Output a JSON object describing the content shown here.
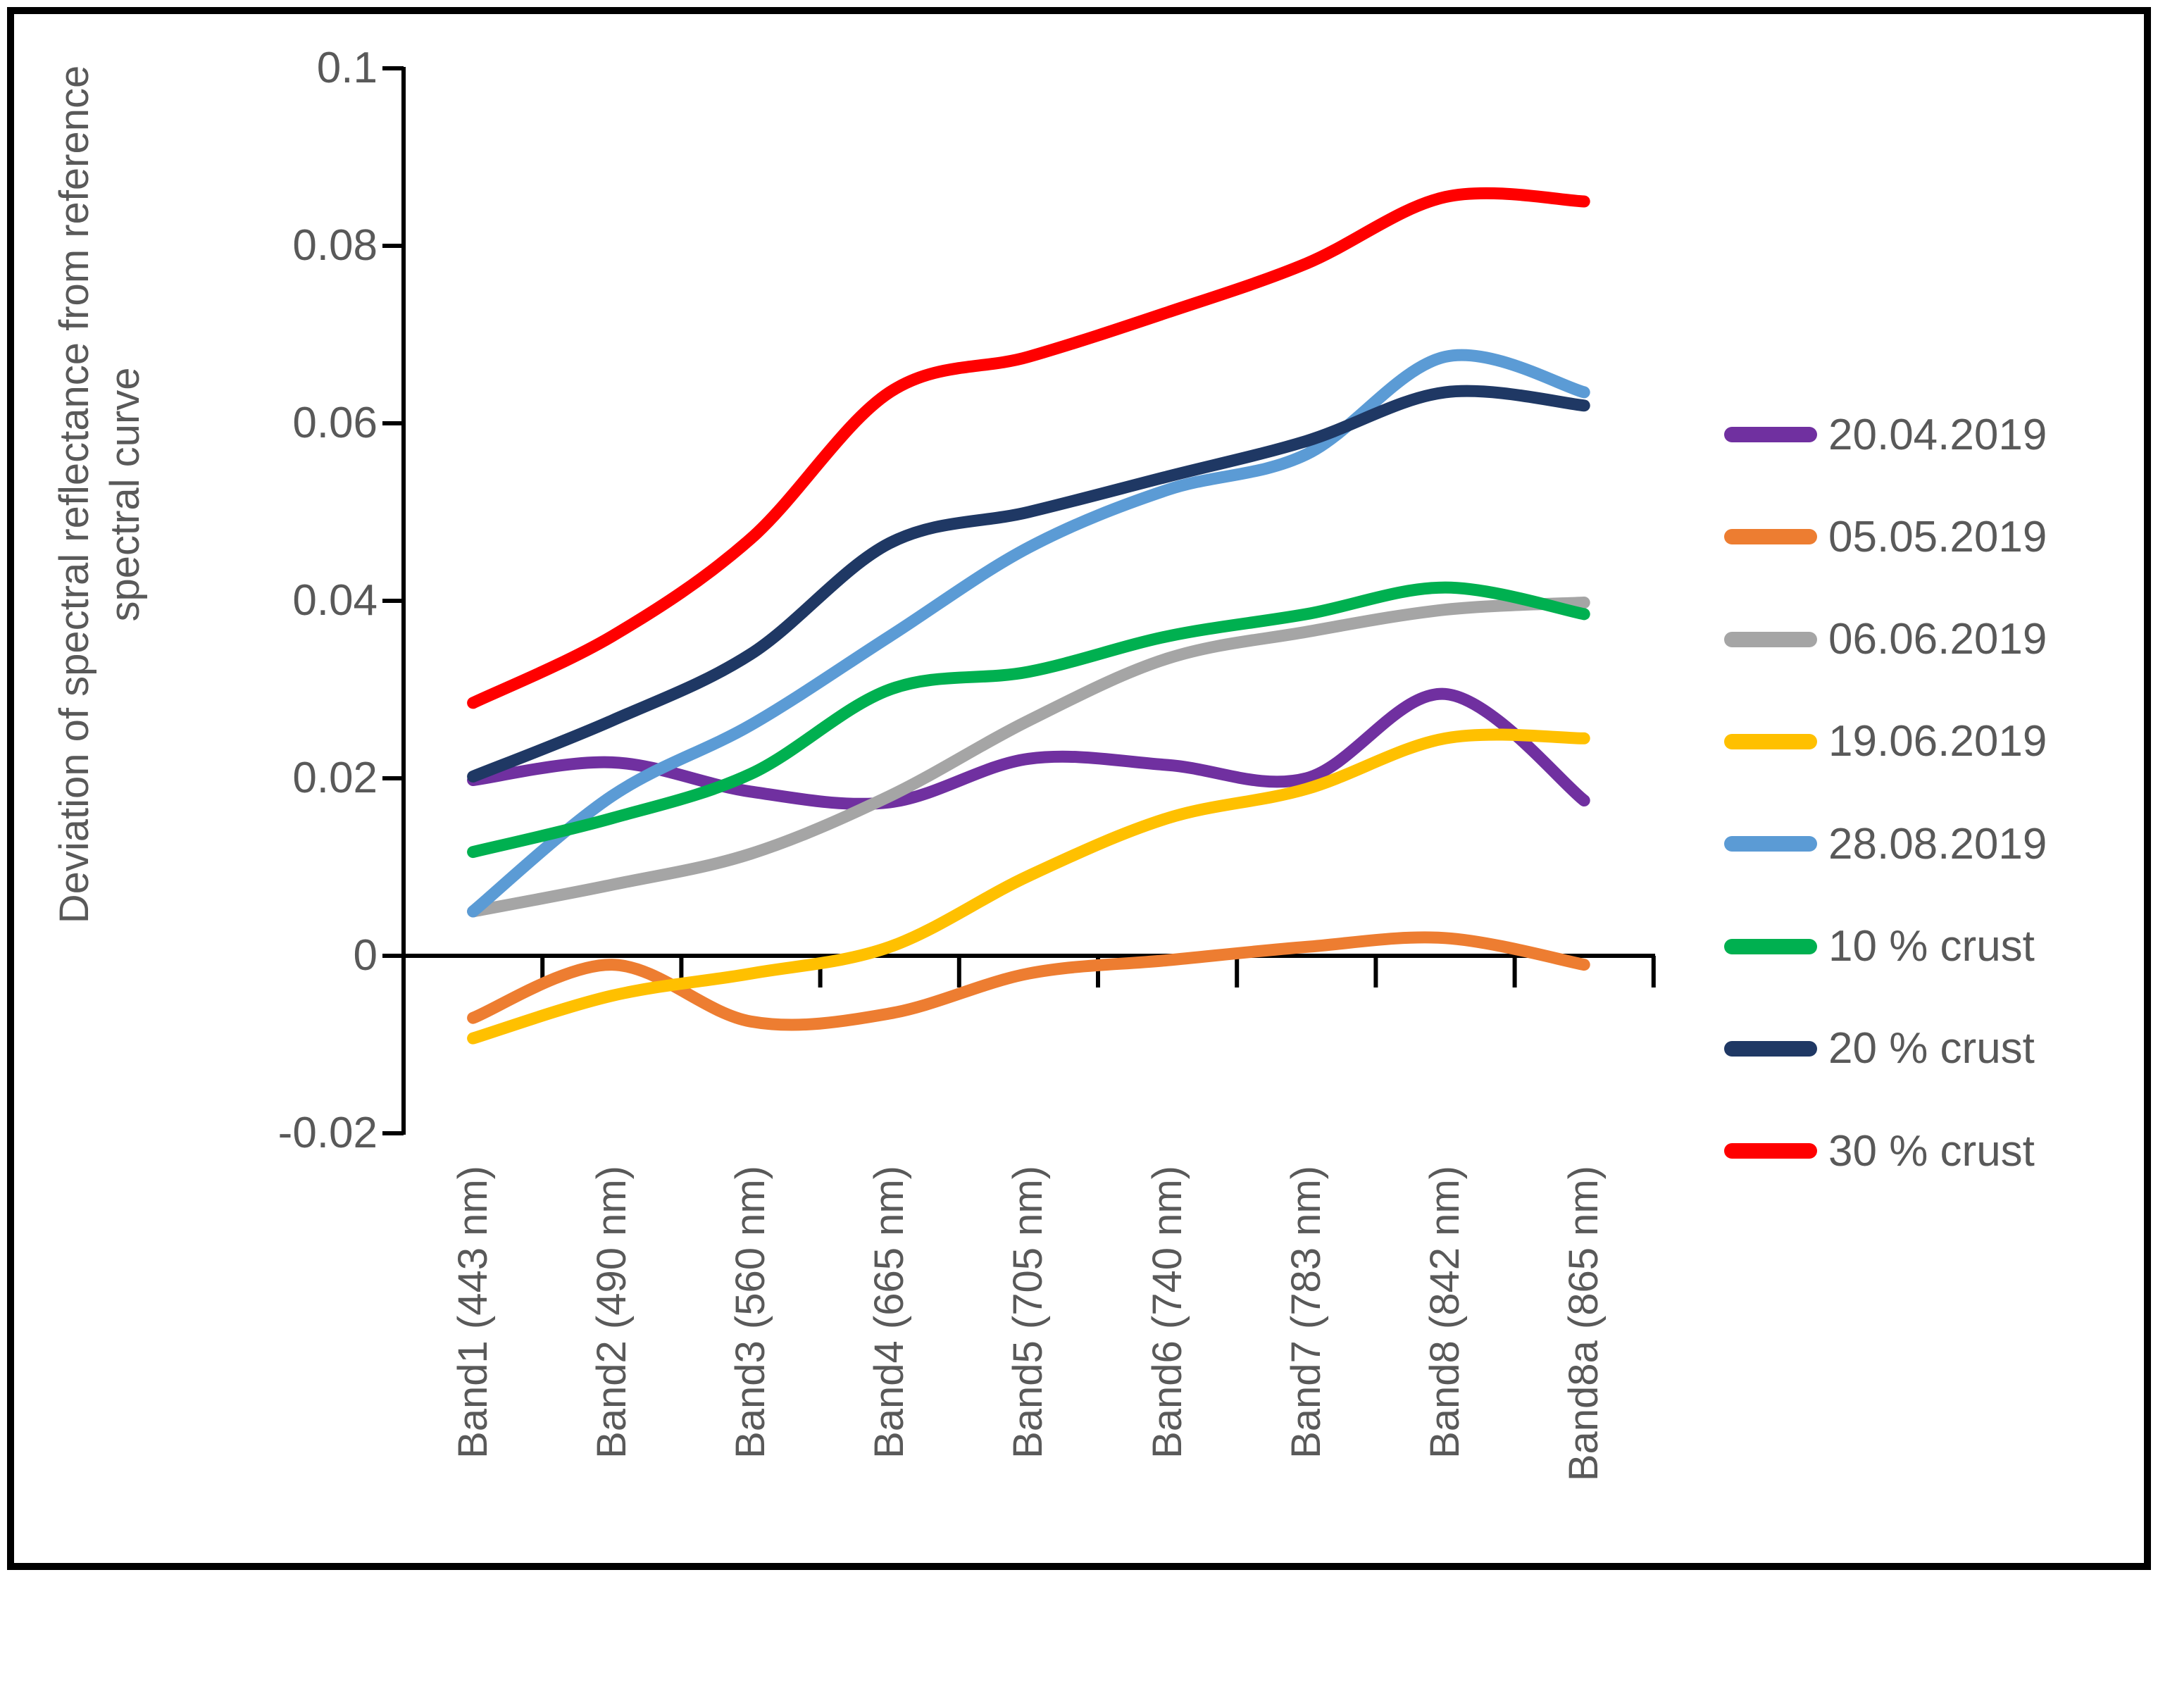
{
  "colors": {
    "axis": "#000000",
    "text": "#595959",
    "background": "#ffffff",
    "frame_border": "#000000"
  },
  "chart_data": {
    "type": "line",
    "title": "",
    "y_axis": {
      "title_line1": "Deviation of spectral reflectance from reference",
      "title_line2": "spectral curve",
      "tick_labels": [
        "0.1",
        "0.08",
        "0.06",
        "0.04",
        "0.02",
        "0",
        "-0.02"
      ],
      "tick_values": [
        0.1,
        0.08,
        0.06,
        0.04,
        0.02,
        0,
        -0.02
      ],
      "min": -0.02,
      "max": 0.1,
      "grid": "off"
    },
    "categories": [
      "Band1 (443 nm)",
      "Band2 (490 nm)",
      "Band3 (560 nm)",
      "Band4 (665 nm)",
      "Band5 (705 nm)",
      "Band6 (740 nm)",
      "Band7 (783 nm)",
      "Band8 (842 nm)",
      "Band8a (865 nm)"
    ],
    "legend_position": "right",
    "series": [
      {
        "name": "20.04.2019",
        "color": "#7030A0",
        "values": [
          0.0198,
          0.0218,
          0.0185,
          0.0173,
          0.0222,
          0.0215,
          0.02,
          0.0295,
          0.0175
        ]
      },
      {
        "name": "05.05.2019",
        "color": "#ED7D31",
        "values": [
          -0.007,
          -0.001,
          -0.0074,
          -0.0065,
          -0.002,
          -0.0005,
          0.001,
          0.002,
          -0.001
        ]
      },
      {
        "name": "06.06.2019",
        "color": "#A5A5A5",
        "values": [
          0.005,
          0.008,
          0.0115,
          0.018,
          0.0265,
          0.0335,
          0.0365,
          0.039,
          0.0398
        ]
      },
      {
        "name": "19.06.2019",
        "color": "#FFC000",
        "values": [
          -0.0093,
          -0.0045,
          -0.002,
          0.001,
          0.009,
          0.0155,
          0.0188,
          0.0245,
          0.0245
        ]
      },
      {
        "name": "28.08.2019",
        "color": "#5B9BD5",
        "values": [
          0.005,
          0.018,
          0.026,
          0.036,
          0.046,
          0.0525,
          0.0565,
          0.0675,
          0.0635
        ]
      },
      {
        "name": "10 % crust",
        "color": "#00B050",
        "values": [
          0.0117,
          0.0155,
          0.0205,
          0.03,
          0.032,
          0.036,
          0.0385,
          0.0415,
          0.0385
        ]
      },
      {
        "name": "20 % crust",
        "color": "#1F3864",
        "values": [
          0.0202,
          0.0265,
          0.034,
          0.0465,
          0.05,
          0.054,
          0.058,
          0.0635,
          0.062
        ]
      },
      {
        "name": "30 % crust",
        "color": "#FF0000",
        "values": [
          0.0285,
          0.036,
          0.047,
          0.0635,
          0.0675,
          0.0725,
          0.078,
          0.0855,
          0.085
        ]
      }
    ]
  }
}
